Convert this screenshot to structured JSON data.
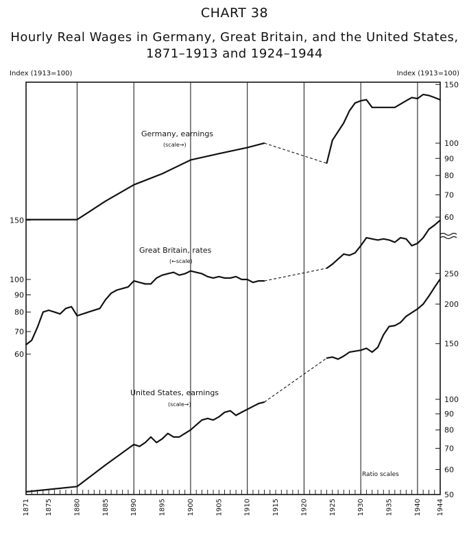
{
  "chart_data": {
    "type": "line",
    "title": "CHART 38",
    "subtitle_line1": "Hourly Real Wages in Germany, Great Britain, and the United States,",
    "subtitle_line2": "1871–1913 and 1924–1944",
    "left_axis_label": "Index (1913=100)",
    "right_axis_label": "Index (1913=100)",
    "note": "Ratio scales",
    "x_ticks": [
      "1871",
      "1875",
      "1880",
      "1885",
      "1890",
      "1895",
      "1900",
      "1905",
      "1910",
      "1915",
      "1920",
      "1925",
      "1930",
      "1935",
      "1940",
      "1944"
    ],
    "left_ticks": [
      "150",
      "100",
      "90",
      "80",
      "70",
      "60"
    ],
    "right_ticks_top": [
      "150",
      "100",
      "90",
      "80",
      "70",
      "60"
    ],
    "right_ticks_bottom": [
      "250",
      "200",
      "150",
      "100",
      "90",
      "80",
      "70",
      "60",
      "50"
    ],
    "scale": "log",
    "series": [
      {
        "name": "Germany, earnings",
        "scale_label": "(scale→)",
        "axis": "right-upper",
        "segments": [
          [
            [
              1871,
              59
            ],
            [
              1880,
              59
            ],
            [
              1885,
              67
            ],
            [
              1890,
              75
            ],
            [
              1895,
              81
            ],
            [
              1900,
              89
            ],
            [
              1905,
              93
            ],
            [
              1910,
              97
            ],
            [
              1913,
              100
            ]
          ],
          [
            [
              1924,
              87
            ],
            [
              1925,
              102
            ],
            [
              1927,
              115
            ],
            [
              1928,
              125
            ],
            [
              1929,
              132
            ],
            [
              1930,
              134
            ],
            [
              1931,
              135
            ],
            [
              1932,
              128
            ],
            [
              1934,
              128
            ],
            [
              1936,
              128
            ],
            [
              1938,
              134
            ],
            [
              1939,
              137
            ],
            [
              1940,
              136
            ],
            [
              1941,
              140
            ],
            [
              1942,
              139
            ],
            [
              1943,
              137
            ],
            [
              1944,
              135
            ]
          ]
        ],
        "gap": [
          [
            1913,
            100
          ],
          [
            1924,
            87
          ]
        ]
      },
      {
        "name": "Great Britain, rates",
        "scale_label": "(←scale)",
        "axis": "left",
        "segments": [
          [
            [
              1871,
              64
            ],
            [
              1872,
              66
            ],
            [
              1873,
              72
            ],
            [
              1874,
              80
            ],
            [
              1875,
              81
            ],
            [
              1876,
              80
            ],
            [
              1877,
              79
            ],
            [
              1878,
              82
            ],
            [
              1879,
              83
            ],
            [
              1880,
              78
            ],
            [
              1882,
              80
            ],
            [
              1884,
              82
            ],
            [
              1885,
              87
            ],
            [
              1886,
              91
            ],
            [
              1887,
              93
            ],
            [
              1888,
              94
            ],
            [
              1889,
              95
            ],
            [
              1890,
              99
            ],
            [
              1891,
              98
            ],
            [
              1892,
              97
            ],
            [
              1893,
              97
            ],
            [
              1894,
              101
            ],
            [
              1895,
              103
            ],
            [
              1896,
              104
            ],
            [
              1897,
              105
            ],
            [
              1898,
              103
            ],
            [
              1899,
              104
            ],
            [
              1900,
              106
            ],
            [
              1901,
              105
            ],
            [
              1902,
              104
            ],
            [
              1903,
              102
            ],
            [
              1904,
              101
            ],
            [
              1905,
              102
            ],
            [
              1906,
              101
            ],
            [
              1907,
              101
            ],
            [
              1908,
              102
            ],
            [
              1909,
              100
            ],
            [
              1910,
              100
            ],
            [
              1911,
              98
            ],
            [
              1912,
              99
            ],
            [
              1913,
              99
            ]
          ],
          [
            [
              1924,
              108
            ],
            [
              1925,
              111
            ],
            [
              1926,
              115
            ],
            [
              1927,
              119
            ],
            [
              1928,
              118
            ],
            [
              1929,
              120
            ],
            [
              1930,
              126
            ],
            [
              1931,
              133
            ],
            [
              1932,
              132
            ],
            [
              1933,
              131
            ],
            [
              1934,
              132
            ],
            [
              1935,
              131
            ],
            [
              1936,
              129
            ],
            [
              1937,
              133
            ],
            [
              1938,
              132
            ],
            [
              1939,
              126
            ],
            [
              1940,
              128
            ],
            [
              1941,
              133
            ],
            [
              1942,
              141
            ],
            [
              1943,
              145
            ],
            [
              1944,
              150
            ]
          ]
        ],
        "gap": [
          [
            1913,
            99
          ],
          [
            1924,
            108
          ]
        ]
      },
      {
        "name": "United States, earnings",
        "scale_label": "(scale→)",
        "axis": "right-lower",
        "segments": [
          [
            [
              1871,
              51
            ],
            [
              1880,
              53
            ],
            [
              1885,
              62
            ],
            [
              1890,
              72
            ],
            [
              1891,
              71
            ],
            [
              1892,
              73
            ],
            [
              1893,
              76
            ],
            [
              1894,
              73
            ],
            [
              1895,
              75
            ],
            [
              1896,
              78
            ],
            [
              1897,
              76
            ],
            [
              1898,
              76
            ],
            [
              1899,
              78
            ],
            [
              1900,
              80
            ],
            [
              1901,
              83
            ],
            [
              1902,
              86
            ],
            [
              1903,
              87
            ],
            [
              1904,
              86
            ],
            [
              1905,
              88
            ],
            [
              1906,
              91
            ],
            [
              1907,
              92
            ],
            [
              1908,
              89
            ],
            [
              1909,
              91
            ],
            [
              1910,
              93
            ],
            [
              1911,
              95
            ],
            [
              1912,
              97
            ],
            [
              1913,
              98
            ]
          ],
          [
            [
              1924,
              135
            ],
            [
              1925,
              136
            ],
            [
              1926,
              134
            ],
            [
              1927,
              137
            ],
            [
              1928,
              141
            ],
            [
              1929,
              142
            ],
            [
              1930,
              143
            ],
            [
              1931,
              145
            ],
            [
              1932,
              141
            ],
            [
              1933,
              146
            ],
            [
              1934,
              160
            ],
            [
              1935,
              170
            ],
            [
              1936,
              171
            ],
            [
              1937,
              175
            ],
            [
              1938,
              183
            ],
            [
              1939,
              188
            ],
            [
              1940,
              193
            ],
            [
              1941,
              200
            ],
            [
              1942,
              212
            ],
            [
              1943,
              226
            ],
            [
              1944,
              240
            ]
          ]
        ],
        "gap": [
          [
            1913,
            98
          ],
          [
            1924,
            135
          ]
        ]
      }
    ]
  }
}
